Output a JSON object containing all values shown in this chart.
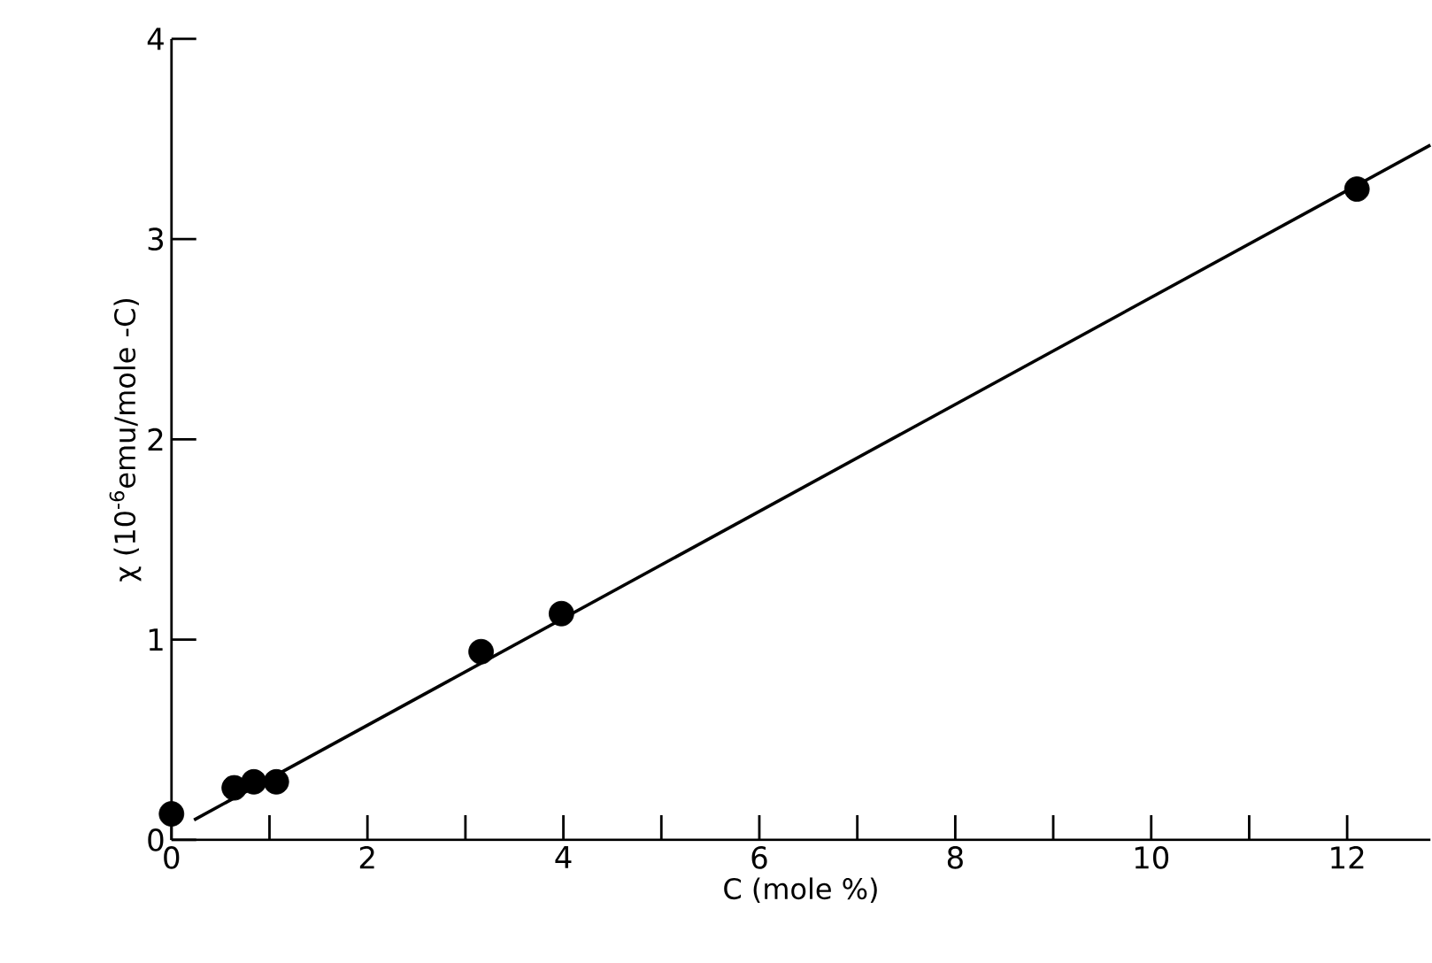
{
  "chart_data": {
    "type": "scatter",
    "xlabel": "C (mole %)",
    "ylabel": "χ (10$^{-6}$emu/mole -C)",
    "xlim": [
      0,
      12.85
    ],
    "ylim": [
      0,
      4
    ],
    "xticks": [
      0,
      {
        "value": 1,
        "label": null
      },
      2,
      {
        "value": 3,
        "label": null
      },
      4,
      {
        "value": 5,
        "label": null
      },
      6,
      {
        "value": 7,
        "label": null
      },
      8,
      {
        "value": 9,
        "label": null
      },
      10,
      {
        "value": 11,
        "label": null
      },
      12
    ],
    "yticks": [
      0,
      1,
      2,
      3,
      4
    ],
    "series": [
      {
        "color": "#000000",
        "marker": "circle",
        "x": [
          0,
          0.64,
          0.84,
          1.07,
          3.16,
          3.98,
          12.1
        ],
        "values": [
          0.13,
          0.26,
          0.29,
          0.29,
          0.94,
          1.13,
          3.25
        ]
      },
      {
        "type": "line",
        "color": "#000000",
        "marker": "none",
        "line_style": "solid",
        "x": [
          0.23,
          12.85
        ],
        "values": [
          0.1,
          3.47
        ]
      }
    ]
  }
}
